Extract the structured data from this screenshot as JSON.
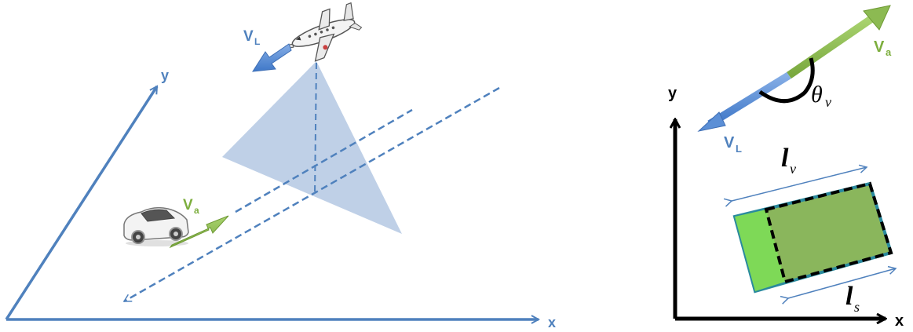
{
  "left_panel": {
    "axis_x_label": "x",
    "axis_y_label": "y",
    "leader_velocity": {
      "main": "V",
      "sub": "L"
    },
    "agent_velocity": {
      "main": "V",
      "sub": "a"
    },
    "icons": [
      "airplane-icon",
      "car-icon"
    ],
    "colors": {
      "axis": "#4f81bd",
      "leader_arrow": "#5b8fd6",
      "agent_arrow": "#8cba52",
      "footprint": "#a9c0df",
      "label_green": "#7dae3e"
    }
  },
  "right_panel": {
    "axis_x_label": "x",
    "axis_y_label": "y",
    "leader_velocity": {
      "main": "V",
      "sub": "L"
    },
    "agent_velocity": {
      "main": "V",
      "sub": "a"
    },
    "theta": {
      "main": "θ",
      "sub": "v"
    },
    "vehicle_length": {
      "main": "l",
      "sub": "v"
    },
    "sensor_length": {
      "main": "l",
      "sub": "s"
    },
    "colors": {
      "axis": "#000000",
      "leader_arrow": "#5b8fd6",
      "agent_arrow": "#8cba52",
      "vehicle_fill": "#8ab65c",
      "vehicle_front": "#7ed957",
      "vehicle_border": "#2a8a9e"
    }
  }
}
